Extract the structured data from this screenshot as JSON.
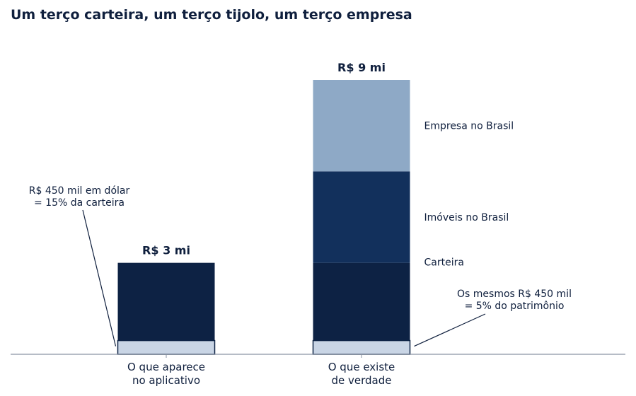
{
  "chart_data": {
    "type": "bar",
    "stacked": true,
    "title": "Um terço carteira, um terço tijolo, um terço empresa",
    "xlabel": "",
    "ylabel": "",
    "ylim": [
      0,
      9
    ],
    "unit": "R$ mi",
    "grid": false,
    "legend": "none",
    "categories": [
      "O que aparece no aplicativo",
      "O que existe de verdade"
    ],
    "category_lines": [
      [
        "O que aparece",
        "no aplicativo"
      ],
      [
        "O que existe",
        "de verdade"
      ]
    ],
    "totals": [
      "R$ 3 mi",
      "R$ 9 mi"
    ],
    "series": [
      {
        "key": "dolar",
        "values": [
          0.45,
          0.45
        ],
        "color": "#c9d5e5"
      },
      {
        "key": "carteira",
        "name": "Carteira",
        "values": [
          2.55,
          2.55
        ],
        "color": "#0d2244"
      },
      {
        "key": "imoveis",
        "name": "Imóveis no Brasil",
        "values": [
          0,
          3
        ],
        "color": "#12305c"
      },
      {
        "key": "empresa",
        "name": "Empresa no Brasil",
        "values": [
          0,
          3
        ],
        "color": "#8ea9c6"
      }
    ],
    "annotations": [
      {
        "lines": [
          "R$ 450 mil em dólar",
          "= 15% da carteira"
        ],
        "category": 0,
        "side": "left"
      },
      {
        "lines": [
          "Os mesmos R$ 450 mil",
          "= 5% do patrimônio"
        ],
        "category": 1,
        "side": "right"
      }
    ]
  }
}
